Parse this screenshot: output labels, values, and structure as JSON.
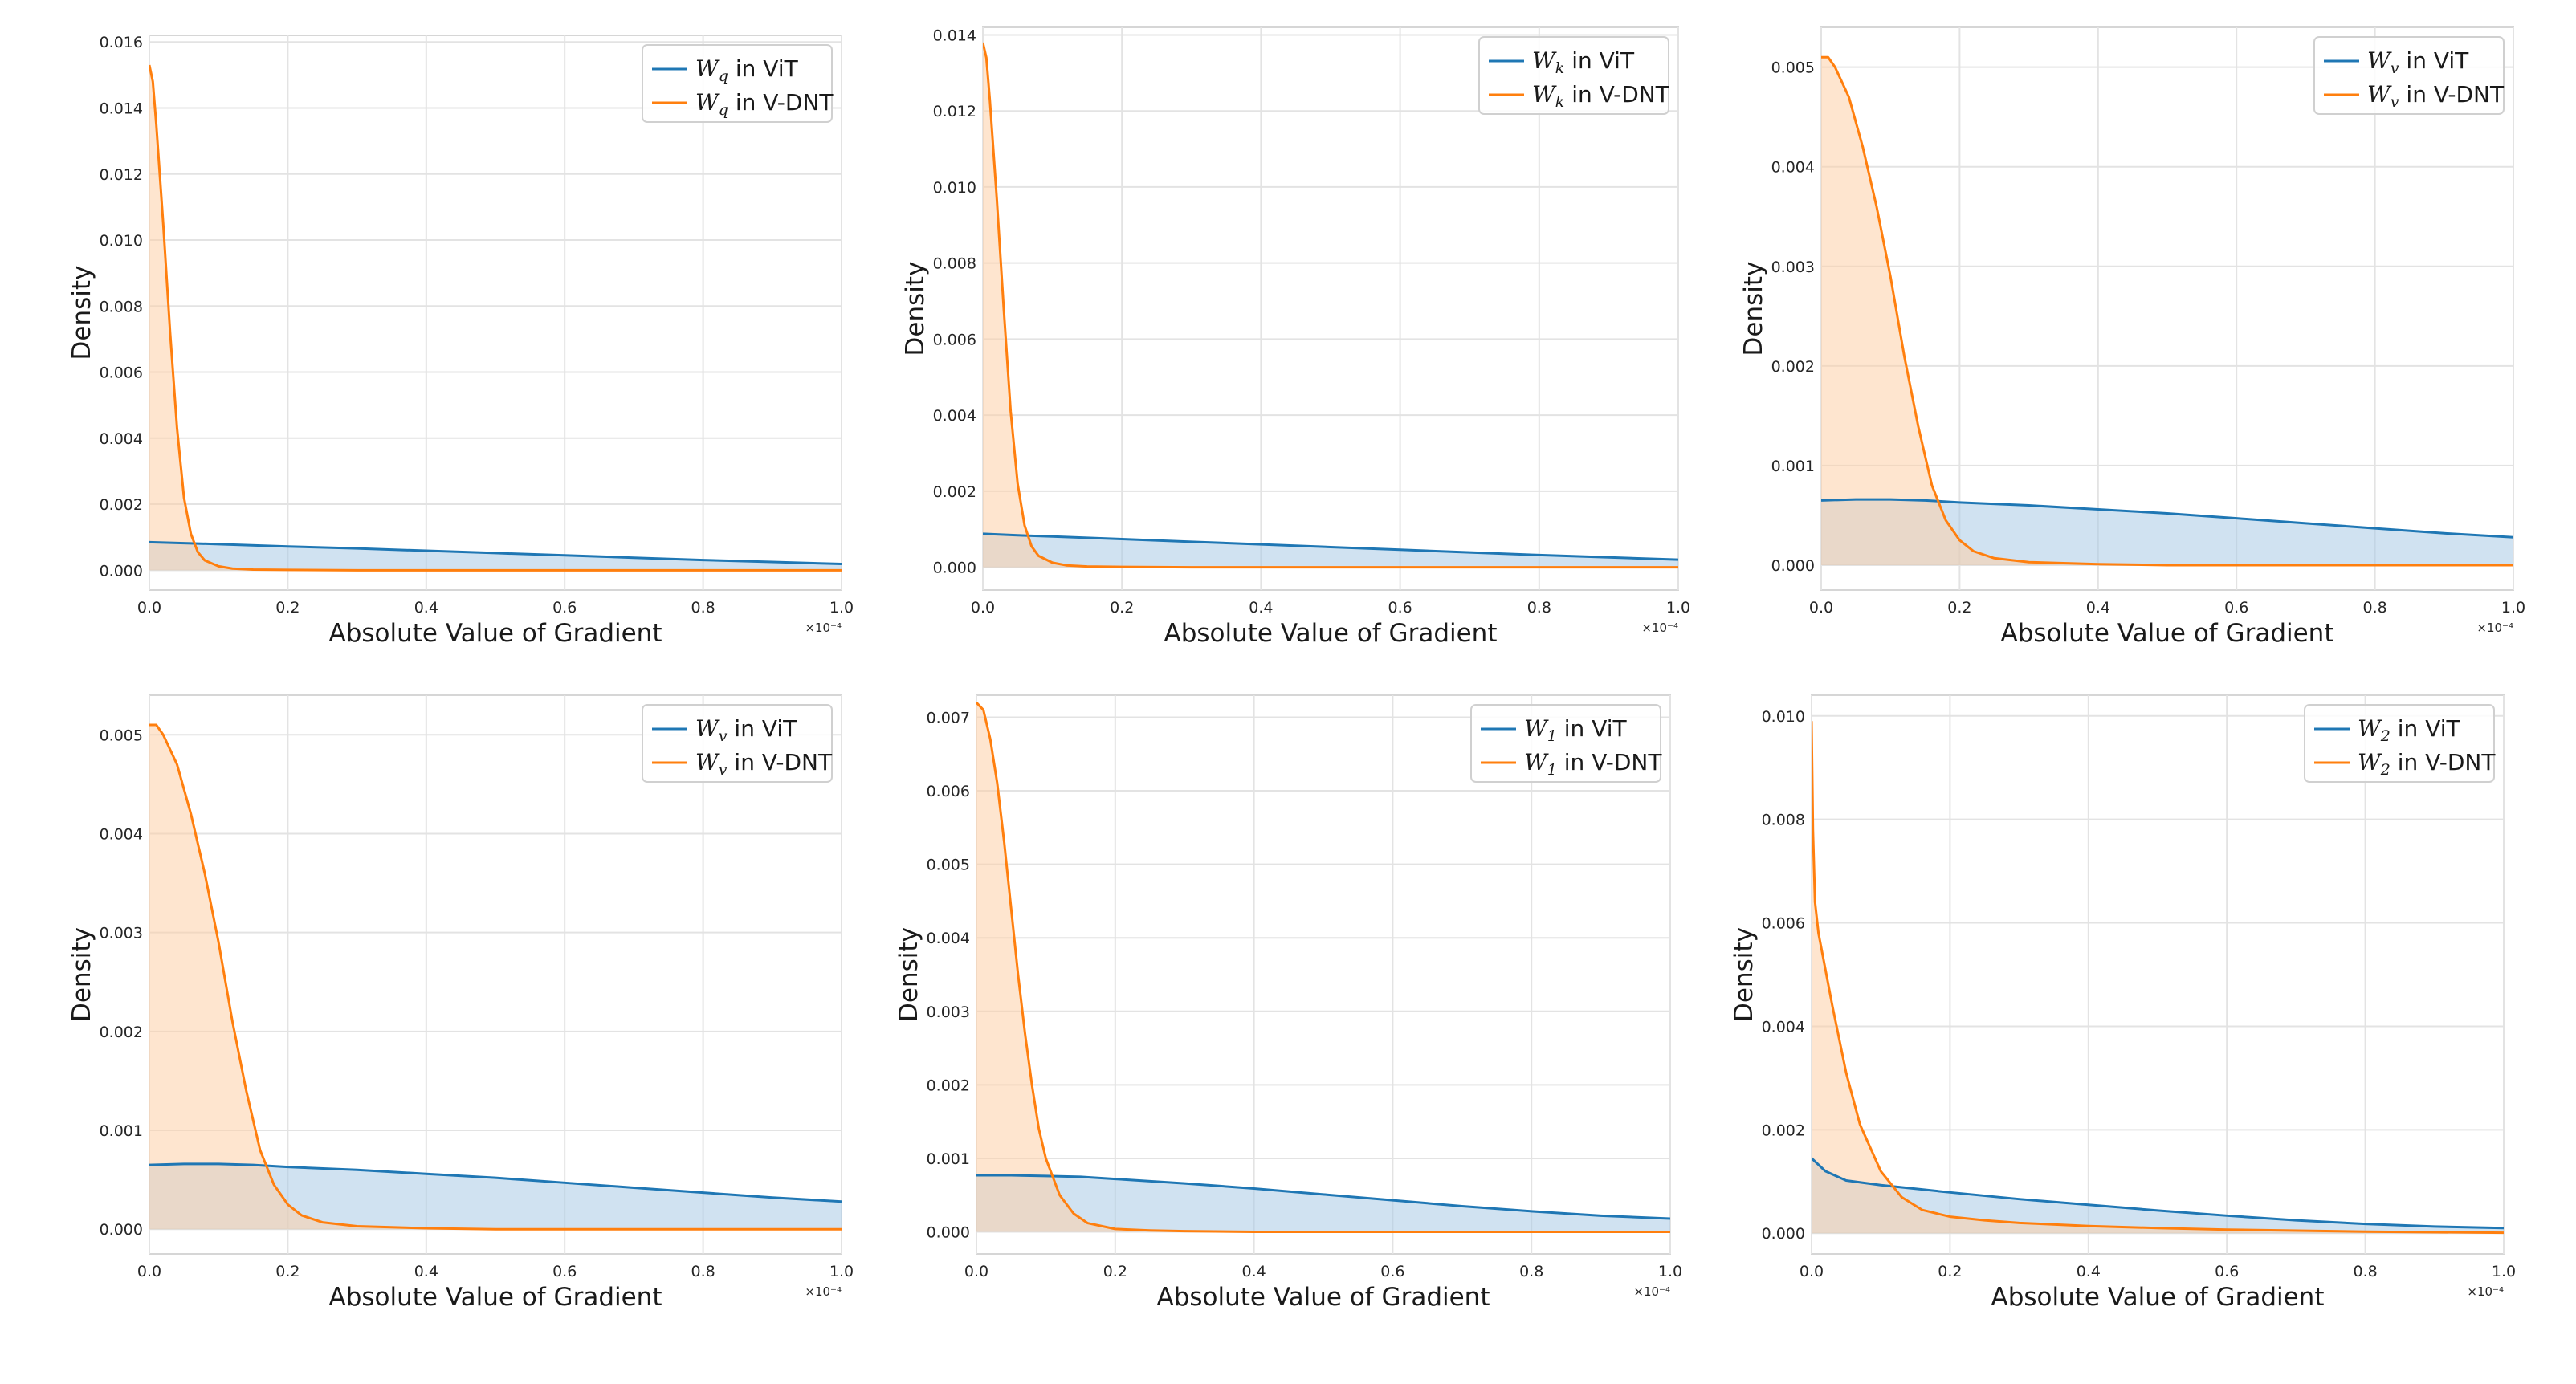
{
  "colors": {
    "vit": "#1f77b4",
    "vdnt": "#ff7f0e",
    "vit_fill": "#a9cbe6",
    "vdnt_fill": "#fdd0a8"
  },
  "chart_data": [
    {
      "type": "area",
      "xlabel": "Absolute Value of Gradient",
      "ylabel": "Density",
      "x_offset_label": "×10⁻⁴",
      "xlim": [
        0,
        1.0
      ],
      "xticks": [
        "0.0",
        "0.2",
        "0.4",
        "0.6",
        "0.8",
        "1.0"
      ],
      "ylim": [
        -0.0006,
        0.0162
      ],
      "yticks": [
        "0.000",
        "0.002",
        "0.004",
        "0.006",
        "0.008",
        "0.010",
        "0.012",
        "0.014",
        "0.016"
      ],
      "grid": true,
      "legend_position": "top-right",
      "series": [
        {
          "name": "W_q in ViT",
          "name_sym": "W",
          "name_sub": "q",
          "name_rest": " in ViT",
          "x": [
            0.0,
            0.05,
            0.1,
            0.2,
            0.3,
            0.4,
            0.5,
            0.6,
            0.7,
            0.8,
            0.9,
            1.0
          ],
          "y": [
            0.00085,
            0.00082,
            0.00079,
            0.00072,
            0.00066,
            0.00059,
            0.00052,
            0.00045,
            0.00038,
            0.00031,
            0.00025,
            0.00019
          ]
        },
        {
          "name": "W_q in V-DNT",
          "name_sym": "W",
          "name_sub": "q",
          "name_rest": " in V-DNT",
          "x": [
            0.0,
            0.005,
            0.01,
            0.02,
            0.03,
            0.04,
            0.05,
            0.06,
            0.07,
            0.08,
            0.1,
            0.12,
            0.15,
            0.2,
            0.3,
            0.5,
            1.0
          ],
          "y": [
            0.0153,
            0.0148,
            0.0135,
            0.0105,
            0.0072,
            0.0043,
            0.0022,
            0.0011,
            0.00055,
            0.0003,
            0.00012,
            5e-05,
            2e-05,
            1e-05,
            0.0,
            0.0,
            0.0
          ]
        }
      ]
    },
    {
      "type": "area",
      "xlabel": "Absolute Value of Gradient",
      "ylabel": "Density",
      "x_offset_label": "×10⁻⁴",
      "xlim": [
        0,
        1.0
      ],
      "xticks": [
        "0.0",
        "0.2",
        "0.4",
        "0.6",
        "0.8",
        "1.0"
      ],
      "ylim": [
        -0.0006,
        0.0142
      ],
      "yticks": [
        "0.000",
        "0.002",
        "0.004",
        "0.006",
        "0.008",
        "0.010",
        "0.012",
        "0.014"
      ],
      "grid": true,
      "legend_position": "top-right",
      "series": [
        {
          "name": "W_k in ViT",
          "name_sym": "W",
          "name_sub": "k",
          "name_rest": " in ViT",
          "x": [
            0.0,
            0.05,
            0.1,
            0.2,
            0.3,
            0.4,
            0.5,
            0.6,
            0.7,
            0.8,
            0.9,
            1.0
          ],
          "y": [
            0.00088,
            0.00084,
            0.00081,
            0.00074,
            0.00067,
            0.0006,
            0.00053,
            0.00046,
            0.00039,
            0.00032,
            0.00026,
            0.0002
          ]
        },
        {
          "name": "W_k in V-DNT",
          "name_sym": "W",
          "name_sub": "k",
          "name_rest": " in V-DNT",
          "x": [
            0.0,
            0.005,
            0.01,
            0.02,
            0.03,
            0.04,
            0.05,
            0.06,
            0.07,
            0.08,
            0.1,
            0.12,
            0.15,
            0.2,
            0.3,
            0.5,
            1.0
          ],
          "y": [
            0.0138,
            0.0134,
            0.0123,
            0.0097,
            0.0068,
            0.0041,
            0.0022,
            0.0011,
            0.00055,
            0.0003,
            0.00012,
            5e-05,
            2e-05,
            1e-05,
            0.0,
            0.0,
            0.0
          ]
        }
      ]
    },
    {
      "type": "area",
      "xlabel": "Absolute Value of Gradient",
      "ylabel": "Density",
      "x_offset_label": "×10⁻⁴",
      "xlim": [
        0,
        1.0
      ],
      "xticks": [
        "0.0",
        "0.2",
        "0.4",
        "0.6",
        "0.8",
        "1.0"
      ],
      "ylim": [
        -0.00025,
        0.0054
      ],
      "yticks": [
        "0.000",
        "0.001",
        "0.002",
        "0.003",
        "0.004",
        "0.005"
      ],
      "grid": true,
      "legend_position": "top-right",
      "series": [
        {
          "name": "W_v in ViT",
          "name_sym": "W",
          "name_sub": "v",
          "name_rest": " in ViT",
          "x": [
            0.0,
            0.05,
            0.1,
            0.15,
            0.2,
            0.3,
            0.4,
            0.5,
            0.6,
            0.7,
            0.8,
            0.9,
            1.0
          ],
          "y": [
            0.00065,
            0.00066,
            0.00066,
            0.00065,
            0.00063,
            0.0006,
            0.00056,
            0.00052,
            0.00047,
            0.00042,
            0.00037,
            0.00032,
            0.00028
          ]
        },
        {
          "name": "W_v in V-DNT",
          "name_sym": "W",
          "name_sub": "v",
          "name_rest": " in V-DNT",
          "x": [
            0.0,
            0.01,
            0.02,
            0.04,
            0.06,
            0.08,
            0.1,
            0.12,
            0.14,
            0.16,
            0.18,
            0.2,
            0.22,
            0.25,
            0.3,
            0.35,
            0.4,
            0.5,
            0.6,
            0.8,
            1.0
          ],
          "y": [
            0.0051,
            0.0051,
            0.005,
            0.0047,
            0.0042,
            0.0036,
            0.0029,
            0.0021,
            0.0014,
            0.0008,
            0.00045,
            0.00025,
            0.00014,
            7e-05,
            3e-05,
            2e-05,
            1e-05,
            0.0,
            0.0,
            0.0,
            0.0
          ]
        }
      ]
    },
    {
      "type": "area",
      "xlabel": "Absolute Value of Gradient",
      "ylabel": "Density",
      "x_offset_label": "×10⁻⁴",
      "xlim": [
        0,
        1.0
      ],
      "xticks": [
        "0.0",
        "0.2",
        "0.4",
        "0.6",
        "0.8",
        "1.0"
      ],
      "ylim": [
        -0.00025,
        0.0054
      ],
      "yticks": [
        "0.000",
        "0.001",
        "0.002",
        "0.003",
        "0.004",
        "0.005"
      ],
      "grid": true,
      "legend_position": "top-right",
      "series": [
        {
          "name": "W_v in ViT",
          "name_sym": "W",
          "name_sub": "v",
          "name_rest": " in ViT",
          "x": [
            0.0,
            0.05,
            0.1,
            0.15,
            0.2,
            0.3,
            0.4,
            0.5,
            0.6,
            0.7,
            0.8,
            0.9,
            1.0
          ],
          "y": [
            0.00065,
            0.00066,
            0.00066,
            0.00065,
            0.00063,
            0.0006,
            0.00056,
            0.00052,
            0.00047,
            0.00042,
            0.00037,
            0.00032,
            0.00028
          ]
        },
        {
          "name": "W_v in V-DNT",
          "name_sym": "W",
          "name_sub": "v",
          "name_rest": " in V-DNT",
          "x": [
            0.0,
            0.01,
            0.02,
            0.04,
            0.06,
            0.08,
            0.1,
            0.12,
            0.14,
            0.16,
            0.18,
            0.2,
            0.22,
            0.25,
            0.3,
            0.35,
            0.4,
            0.5,
            0.6,
            0.8,
            1.0
          ],
          "y": [
            0.0051,
            0.0051,
            0.005,
            0.0047,
            0.0042,
            0.0036,
            0.0029,
            0.0021,
            0.0014,
            0.0008,
            0.00045,
            0.00025,
            0.00014,
            7e-05,
            3e-05,
            2e-05,
            1e-05,
            0.0,
            0.0,
            0.0,
            0.0
          ]
        }
      ]
    },
    {
      "type": "area",
      "xlabel": "Absolute Value of Gradient",
      "ylabel": "Density",
      "x_offset_label": "×10⁻⁴",
      "xlim": [
        0,
        1.0
      ],
      "xticks": [
        "0.0",
        "0.2",
        "0.4",
        "0.6",
        "0.8",
        "1.0"
      ],
      "ylim": [
        -0.0003,
        0.0073
      ],
      "yticks": [
        "0.000",
        "0.001",
        "0.002",
        "0.003",
        "0.004",
        "0.005",
        "0.006",
        "0.007"
      ],
      "grid": true,
      "legend_position": "top-right",
      "series": [
        {
          "name": "W_1 in ViT",
          "name_sym": "W",
          "name_sub": "1",
          "name_rest": " in ViT",
          "x": [
            0.0,
            0.05,
            0.1,
            0.15,
            0.2,
            0.3,
            0.4,
            0.5,
            0.6,
            0.7,
            0.8,
            0.9,
            1.0
          ],
          "y": [
            0.00077,
            0.00077,
            0.00076,
            0.00075,
            0.00072,
            0.00066,
            0.00059,
            0.00051,
            0.00043,
            0.00035,
            0.00028,
            0.00022,
            0.00018
          ]
        },
        {
          "name": "W_1 in V-DNT",
          "name_sym": "W",
          "name_sub": "1",
          "name_rest": " in V-DNT",
          "x": [
            0.0,
            0.01,
            0.02,
            0.03,
            0.04,
            0.05,
            0.06,
            0.07,
            0.08,
            0.09,
            0.1,
            0.12,
            0.14,
            0.16,
            0.2,
            0.25,
            0.3,
            0.4,
            0.6,
            1.0
          ],
          "y": [
            0.0072,
            0.0071,
            0.0067,
            0.0061,
            0.0053,
            0.0044,
            0.0035,
            0.0027,
            0.002,
            0.0014,
            0.001,
            0.0005,
            0.00025,
            0.00012,
            4e-05,
            2e-05,
            1e-05,
            0.0,
            0.0,
            0.0
          ]
        }
      ]
    },
    {
      "type": "area",
      "xlabel": "Absolute Value of Gradient",
      "ylabel": "Density",
      "x_offset_label": "×10⁻⁴",
      "xlim": [
        0,
        1.0
      ],
      "xticks": [
        "0.0",
        "0.2",
        "0.4",
        "0.6",
        "0.8",
        "1.0"
      ],
      "ylim": [
        -0.0004,
        0.0104
      ],
      "yticks": [
        "0.000",
        "0.002",
        "0.004",
        "0.006",
        "0.008",
        "0.010"
      ],
      "grid": true,
      "legend_position": "top-right",
      "series": [
        {
          "name": "W_2 in ViT",
          "name_sym": "W",
          "name_sub": "2",
          "name_rest": " in ViT",
          "x": [
            0.0,
            0.02,
            0.05,
            0.1,
            0.15,
            0.2,
            0.3,
            0.4,
            0.5,
            0.6,
            0.7,
            0.8,
            0.9,
            1.0
          ],
          "y": [
            0.00145,
            0.0012,
            0.00102,
            0.00093,
            0.00086,
            0.00079,
            0.00066,
            0.00055,
            0.00044,
            0.00034,
            0.00025,
            0.00018,
            0.00013,
            0.0001
          ]
        },
        {
          "name": "W_2 in V-DNT",
          "name_sym": "W",
          "name_sub": "2",
          "name_rest": " in V-DNT",
          "x": [
            0.0,
            0.002,
            0.005,
            0.01,
            0.02,
            0.03,
            0.05,
            0.07,
            0.1,
            0.13,
            0.16,
            0.2,
            0.25,
            0.3,
            0.4,
            0.5,
            0.6,
            0.8,
            1.0
          ],
          "y": [
            0.0099,
            0.0078,
            0.0064,
            0.0058,
            0.0051,
            0.0044,
            0.0031,
            0.0021,
            0.0012,
            0.0007,
            0.00045,
            0.00032,
            0.00025,
            0.0002,
            0.00014,
            0.0001,
            7e-05,
            3e-05,
            1e-05
          ]
        }
      ]
    }
  ]
}
